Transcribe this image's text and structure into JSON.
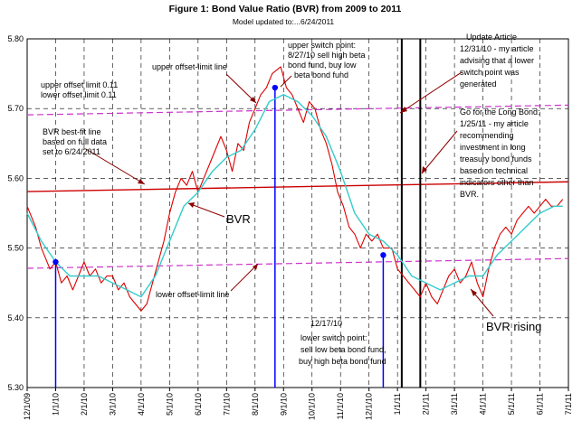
{
  "chart_data": {
    "type": "line",
    "title": "Figure 1: Bond Value Ratio (BVR) from 2009 to 2011",
    "subtitle": "Model updated to:...6/24/2011",
    "xlabel": "",
    "ylabel": "",
    "ylim": [
      5.3,
      5.8
    ],
    "yticks": [
      "5.30",
      "5.40",
      "5.50",
      "5.60",
      "5.70",
      "5.80"
    ],
    "xticks": [
      "12/1/09",
      "1/1/10",
      "2/1/10",
      "3/1/10",
      "4/1/10",
      "5/1/10",
      "6/1/10",
      "7/1/10",
      "8/1/10",
      "9/1/10",
      "10/1/10",
      "11/1/10",
      "12/1/10",
      "1/1/11",
      "2/1/11",
      "3/1/11",
      "4/1/11",
      "5/1/11",
      "6/1/11",
      "7/1/11"
    ],
    "grid": true,
    "series": [
      {
        "role": "BVR (daily)",
        "color": "#dd0000",
        "points": [
          [
            0,
            5.56
          ],
          [
            0.3,
            5.53
          ],
          [
            0.5,
            5.5
          ],
          [
            0.8,
            5.47
          ],
          [
            1.0,
            5.48
          ],
          [
            1.2,
            5.45
          ],
          [
            1.4,
            5.46
          ],
          [
            1.6,
            5.44
          ],
          [
            1.8,
            5.46
          ],
          [
            2.0,
            5.48
          ],
          [
            2.2,
            5.46
          ],
          [
            2.4,
            5.47
          ],
          [
            2.6,
            5.45
          ],
          [
            2.8,
            5.46
          ],
          [
            3.0,
            5.46
          ],
          [
            3.2,
            5.44
          ],
          [
            3.4,
            5.45
          ],
          [
            3.6,
            5.43
          ],
          [
            3.8,
            5.42
          ],
          [
            4.0,
            5.41
          ],
          [
            4.2,
            5.42
          ],
          [
            4.4,
            5.45
          ],
          [
            4.6,
            5.48
          ],
          [
            4.8,
            5.51
          ],
          [
            5.0,
            5.55
          ],
          [
            5.2,
            5.58
          ],
          [
            5.4,
            5.6
          ],
          [
            5.6,
            5.59
          ],
          [
            5.8,
            5.61
          ],
          [
            6.0,
            5.58
          ],
          [
            6.2,
            5.6
          ],
          [
            6.4,
            5.62
          ],
          [
            6.6,
            5.64
          ],
          [
            6.8,
            5.66
          ],
          [
            7.0,
            5.64
          ],
          [
            7.2,
            5.61
          ],
          [
            7.4,
            5.65
          ],
          [
            7.6,
            5.64
          ],
          [
            7.8,
            5.68
          ],
          [
            8.0,
            5.7
          ],
          [
            8.2,
            5.72
          ],
          [
            8.4,
            5.73
          ],
          [
            8.6,
            5.75
          ],
          [
            8.9,
            5.76
          ],
          [
            9.1,
            5.73
          ],
          [
            9.3,
            5.72
          ],
          [
            9.5,
            5.7
          ],
          [
            9.7,
            5.68
          ],
          [
            9.9,
            5.71
          ],
          [
            10.1,
            5.7
          ],
          [
            10.3,
            5.67
          ],
          [
            10.5,
            5.65
          ],
          [
            10.7,
            5.62
          ],
          [
            10.9,
            5.58
          ],
          [
            11.1,
            5.56
          ],
          [
            11.3,
            5.53
          ],
          [
            11.5,
            5.52
          ],
          [
            11.7,
            5.5
          ],
          [
            11.9,
            5.52
          ],
          [
            12.1,
            5.51
          ],
          [
            12.3,
            5.52
          ],
          [
            12.5,
            5.5
          ],
          [
            12.8,
            5.5
          ],
          [
            13.0,
            5.47
          ],
          [
            13.2,
            5.46
          ],
          [
            13.4,
            5.45
          ],
          [
            13.6,
            5.44
          ],
          [
            13.8,
            5.43
          ],
          [
            14.0,
            5.45
          ],
          [
            14.2,
            5.43
          ],
          [
            14.4,
            5.42
          ],
          [
            14.6,
            5.44
          ],
          [
            14.8,
            5.46
          ],
          [
            15.0,
            5.47
          ],
          [
            15.2,
            5.45
          ],
          [
            15.4,
            5.46
          ],
          [
            15.6,
            5.48
          ],
          [
            15.8,
            5.45
          ],
          [
            16.0,
            5.43
          ],
          [
            16.2,
            5.47
          ],
          [
            16.4,
            5.5
          ],
          [
            16.6,
            5.52
          ],
          [
            16.8,
            5.53
          ],
          [
            17.0,
            5.52
          ],
          [
            17.2,
            5.54
          ],
          [
            17.4,
            5.55
          ],
          [
            17.6,
            5.56
          ],
          [
            17.8,
            5.55
          ],
          [
            18.0,
            5.56
          ],
          [
            18.2,
            5.57
          ],
          [
            18.4,
            5.56
          ],
          [
            18.6,
            5.56
          ],
          [
            18.8,
            5.57
          ]
        ]
      },
      {
        "role": "BVR moving average",
        "color": "#33cccc",
        "points": [
          [
            0,
            5.55
          ],
          [
            0.5,
            5.51
          ],
          [
            1.0,
            5.48
          ],
          [
            1.5,
            5.46
          ],
          [
            2.0,
            5.46
          ],
          [
            2.5,
            5.46
          ],
          [
            3.0,
            5.45
          ],
          [
            3.5,
            5.44
          ],
          [
            4.0,
            5.43
          ],
          [
            4.5,
            5.46
          ],
          [
            5.0,
            5.51
          ],
          [
            5.5,
            5.56
          ],
          [
            6.0,
            5.58
          ],
          [
            6.5,
            5.61
          ],
          [
            7.0,
            5.63
          ],
          [
            7.5,
            5.64
          ],
          [
            8.0,
            5.67
          ],
          [
            8.5,
            5.71
          ],
          [
            9.0,
            5.72
          ],
          [
            9.5,
            5.71
          ],
          [
            10.0,
            5.69
          ],
          [
            10.5,
            5.66
          ],
          [
            11.0,
            5.61
          ],
          [
            11.5,
            5.55
          ],
          [
            12.0,
            5.52
          ],
          [
            12.5,
            5.51
          ],
          [
            13.0,
            5.49
          ],
          [
            13.5,
            5.46
          ],
          [
            14.0,
            5.45
          ],
          [
            14.5,
            5.44
          ],
          [
            15.0,
            5.45
          ],
          [
            15.5,
            5.46
          ],
          [
            16.0,
            5.46
          ],
          [
            16.5,
            5.49
          ],
          [
            17.0,
            5.51
          ],
          [
            17.5,
            5.53
          ],
          [
            18.0,
            5.55
          ],
          [
            18.5,
            5.56
          ],
          [
            18.8,
            5.56
          ]
        ]
      }
    ],
    "best_fit_line": {
      "label": "BVR best-fit line",
      "color": "#cc0000",
      "start": [
        0,
        5.581
      ],
      "end": [
        19,
        5.595
      ]
    },
    "offset_lines": {
      "color": "#cc33cc",
      "upper": {
        "start": [
          0,
          5.691
        ],
        "end": [
          19,
          5.705
        ]
      },
      "lower": {
        "start": [
          0,
          5.471
        ],
        "end": [
          19,
          5.485
        ]
      }
    },
    "switch_points": {
      "color": "#0000ff",
      "points": [
        [
          1.0,
          5.48
        ],
        [
          8.7,
          5.73
        ],
        [
          12.5,
          5.49
        ]
      ]
    },
    "event_lines": [
      13.15,
      13.8
    ]
  },
  "annotations": {
    "offset_limits_1": "upper offset limit  0.11",
    "offset_limits_2": "lower offset limit  0.11",
    "upper_offset_line": "upper offset-limit line",
    "lower_offset_line": "lower offset-limit line",
    "bestfit_1": "BVR best-fit line",
    "bestfit_2": "based on full data",
    "bestfit_3": "set to 6/24/2011",
    "bvr_label": "BVR",
    "bvr_rising": "BVR rising",
    "upper_switch_1": "upper switch point:",
    "upper_switch_2": "8/27/10 sell high beta",
    "upper_switch_3": "bond fund, buy low",
    "upper_switch_4": "beta bond fund",
    "lower_switch_1": "12/17/10",
    "lower_switch_2": "lower switch point:",
    "lower_switch_3": "sell low beta bond fund,",
    "lower_switch_4": "buy high beta bond fund",
    "update_1": "Update Article",
    "update_2": "12/31/10 - my article",
    "update_3": "advising that a lower",
    "update_4": "switch point was",
    "update_5": "generated",
    "longbond_1": "Go for the Long Bond:",
    "longbond_2": "1/25/11 - my article",
    "longbond_3": "recommending",
    "longbond_4": "investment in long",
    "longbond_5": "treasury bond funds",
    "longbond_6": "based on technical",
    "longbond_7": "indicators other than",
    "longbond_8": "BVR."
  }
}
